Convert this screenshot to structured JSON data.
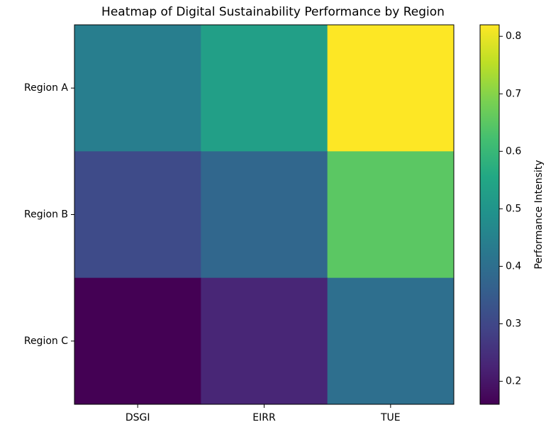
{
  "chart_data": {
    "type": "heatmap",
    "title": "Heatmap of Digital Sustainability Performance by Region",
    "x_categories": [
      "DSGI",
      "EIRR",
      "TUE"
    ],
    "y_categories": [
      "Region A",
      "Region B",
      "Region C"
    ],
    "values": [
      [
        0.44,
        0.53,
        0.82
      ],
      [
        0.31,
        0.38,
        0.65
      ],
      [
        0.16,
        0.23,
        0.4
      ]
    ],
    "colormap": "viridis",
    "clim": [
      0.16,
      0.82
    ],
    "colorbar_ticks": [
      0.2,
      0.3,
      0.4,
      0.5,
      0.6,
      0.7,
      0.8
    ],
    "colorbar_label": "Performance Intensity"
  }
}
